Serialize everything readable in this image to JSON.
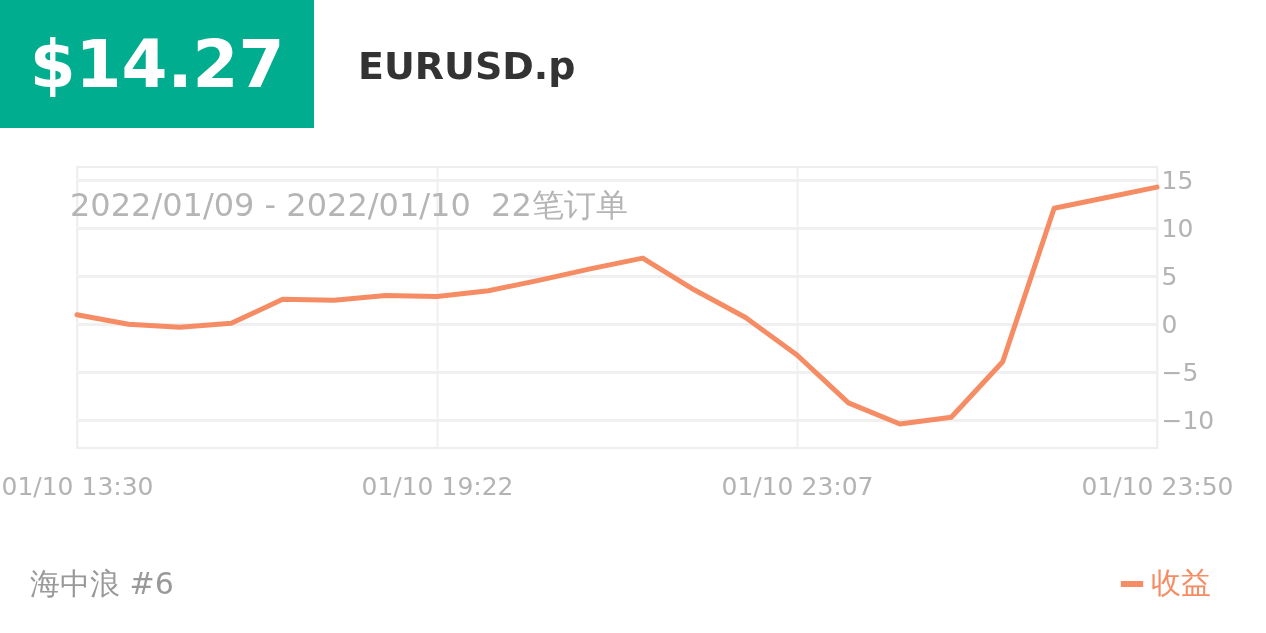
{
  "chart_data": {
    "type": "line",
    "title": "EURUSD.p",
    "subtitle": "2022/01/09 - 2022/01/10  22笔订单",
    "annotations": [
      "$14.27",
      "海中浪 #6"
    ],
    "categories": [
      "01/10 13:30",
      null,
      null,
      null,
      null,
      null,
      null,
      "01/10 19:22",
      null,
      null,
      null,
      null,
      null,
      null,
      "01/10 23:07",
      null,
      null,
      null,
      null,
      null,
      null,
      "01/10 23:50"
    ],
    "series": [
      {
        "name": "收益",
        "color": "#f58c64",
        "values": [
          1.0,
          0.0,
          -0.3,
          0.1,
          2.6,
          2.5,
          3.0,
          2.9,
          3.5,
          4.6,
          5.8,
          6.9,
          3.6,
          0.7,
          -3.2,
          -8.2,
          -10.4,
          -9.7,
          -3.9,
          12.1,
          13.2,
          14.3
        ]
      }
    ],
    "ylim": [
      -12.9,
      16.4
    ],
    "yticks": [
      -10,
      -5,
      0,
      5,
      10,
      15
    ],
    "grid": true,
    "legend": "bottom right"
  }
}
